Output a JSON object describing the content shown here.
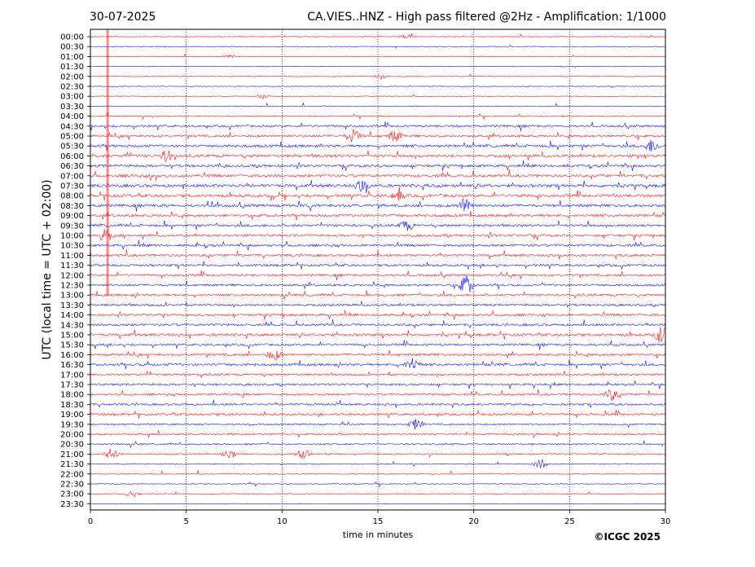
{
  "chart_data": {
    "type": "line",
    "title_left": "30-07-2025",
    "title_right": "CA.VIES..HNZ - High pass filtered @2Hz - Amplification: 1/1000",
    "xlabel": "time in minutes",
    "ylabel": "UTC (local time = UTC + 02:00)",
    "credit": "©ICGC 2025",
    "xlim": [
      0,
      30
    ],
    "x_ticks": [
      "0",
      "5",
      "10",
      "15",
      "20",
      "25",
      "30"
    ],
    "x_grid": "dotted vertical lines every 5 minutes",
    "row_labels": [
      "00:00",
      "00:30",
      "01:00",
      "01:30",
      "02:00",
      "02:30",
      "03:00",
      "03:30",
      "04:00",
      "04:30",
      "05:00",
      "05:30",
      "06:00",
      "06:30",
      "07:00",
      "07:30",
      "08:00",
      "08:30",
      "09:00",
      "09:30",
      "10:00",
      "10:30",
      "11:00",
      "11:30",
      "12:00",
      "12:30",
      "13:00",
      "13:30",
      "14:00",
      "14:30",
      "15:00",
      "15:30",
      "16:00",
      "16:30",
      "17:00",
      "17:30",
      "18:00",
      "18:30",
      "19:00",
      "19:30",
      "20:00",
      "20:30",
      "21:00",
      "21:30",
      "22:00",
      "22:30",
      "23:00",
      "23:30"
    ],
    "trace_colors": [
      "#ff0000",
      "#0000ff"
    ],
    "activity_level": [
      0.05,
      0.06,
      0.05,
      0.05,
      0.06,
      0.05,
      0.05,
      0.08,
      0.2,
      0.45,
      0.5,
      0.55,
      0.6,
      0.55,
      0.6,
      0.65,
      0.6,
      0.6,
      0.55,
      0.5,
      0.5,
      0.5,
      0.5,
      0.45,
      0.45,
      0.45,
      0.45,
      0.45,
      0.45,
      0.5,
      0.55,
      0.45,
      0.45,
      0.5,
      0.4,
      0.4,
      0.4,
      0.4,
      0.4,
      0.3,
      0.3,
      0.25,
      0.25,
      0.15,
      0.1,
      0.1,
      0.08,
      0.05
    ],
    "events": [
      {
        "row": 0,
        "minute": 16.5,
        "amp": 0.2
      },
      {
        "row": 2,
        "minute": 7.3,
        "amp": 0.15
      },
      {
        "row": 4,
        "minute": 15.1,
        "amp": 0.25
      },
      {
        "row": 6,
        "minute": 9.0,
        "amp": 0.2
      },
      {
        "row": 10,
        "minute": 13.7,
        "amp": 0.6
      },
      {
        "row": 10,
        "minute": 15.9,
        "amp": 0.5
      },
      {
        "row": 11,
        "minute": 29.3,
        "amp": 0.6
      },
      {
        "row": 12,
        "minute": 4.0,
        "amp": 0.5
      },
      {
        "row": 15,
        "minute": 14.2,
        "amp": 0.6
      },
      {
        "row": 16,
        "minute": 16.0,
        "amp": 0.5
      },
      {
        "row": 17,
        "minute": 19.6,
        "amp": 0.8
      },
      {
        "row": 19,
        "minute": 16.5,
        "amp": 0.5
      },
      {
        "row": 20,
        "minute": 0.8,
        "amp": 0.6
      },
      {
        "row": 25,
        "minute": 19.6,
        "amp": 0.9
      },
      {
        "row": 30,
        "minute": 29.8,
        "amp": 0.8
      },
      {
        "row": 32,
        "minute": 9.6,
        "amp": 0.5
      },
      {
        "row": 33,
        "minute": 16.8,
        "amp": 0.6
      },
      {
        "row": 36,
        "minute": 27.2,
        "amp": 0.5
      },
      {
        "row": 39,
        "minute": 17.0,
        "amp": 0.5
      },
      {
        "row": 42,
        "minute": 1.1,
        "amp": 0.5
      },
      {
        "row": 42,
        "minute": 7.2,
        "amp": 0.5
      },
      {
        "row": 42,
        "minute": 11.1,
        "amp": 0.5
      },
      {
        "row": 43,
        "minute": 23.5,
        "amp": 0.4
      },
      {
        "row": 46,
        "minute": 2.2,
        "amp": 0.3
      }
    ],
    "marker": {
      "minute": 0.9,
      "from_row": 0,
      "to_row": 26,
      "color": "#ff0000"
    }
  }
}
